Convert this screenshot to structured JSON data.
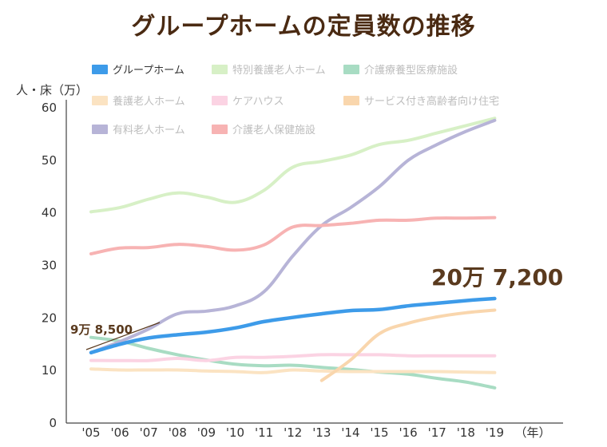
{
  "chart_data": {
    "type": "line",
    "title": "グループホームの定員数の推移",
    "ylabel": "人・床（万）",
    "xlabel": "（年）",
    "ylim": [
      0,
      60
    ],
    "yticks": [
      "0",
      "10",
      "20",
      "30",
      "40",
      "50",
      "60"
    ],
    "categories": [
      "'05",
      "'06",
      "'07",
      "'08",
      "'09",
      "'10",
      "'11",
      "'12",
      "'13",
      "'14",
      "'15",
      "'16",
      "'17",
      "'18",
      "'19"
    ],
    "grid": false,
    "legend_position": "top-left",
    "series": [
      {
        "name": "グループホーム",
        "color": "#3d9be9",
        "highlight": true,
        "values": [
          13.4,
          15.0,
          16.2,
          16.8,
          17.3,
          18.1,
          19.3,
          20.1,
          20.8,
          21.4,
          21.6,
          22.3,
          22.8,
          23.3,
          23.7
        ]
      },
      {
        "name": "特別養護老人ホーム",
        "color": "#d7f0c6",
        "values": [
          40.2,
          41.0,
          42.6,
          43.8,
          43.0,
          42.0,
          44.3,
          48.7,
          49.8,
          51.0,
          53.0,
          53.8,
          55.2,
          56.6,
          58.0
        ]
      },
      {
        "name": "介護療養型医療施設",
        "color": "#a8dcc3",
        "values": [
          16.3,
          15.6,
          14.2,
          13.0,
          12.0,
          11.2,
          10.9,
          11.0,
          10.6,
          10.2,
          9.7,
          9.3,
          8.5,
          7.8,
          6.7
        ]
      },
      {
        "name": "養護老人ホーム",
        "color": "#fbe3c2",
        "values": [
          10.3,
          10.1,
          10.1,
          10.1,
          9.9,
          9.8,
          9.6,
          10.1,
          9.9,
          9.8,
          9.8,
          9.8,
          9.8,
          9.7,
          9.6
        ]
      },
      {
        "name": "ケアハウス",
        "color": "#fbd3e3",
        "values": [
          11.9,
          11.9,
          11.9,
          12.3,
          11.9,
          12.5,
          12.5,
          12.7,
          13.0,
          13.0,
          13.0,
          12.8,
          12.8,
          12.8,
          12.8
        ]
      },
      {
        "name": "サービス付き高齢者向け住宅",
        "color": "#f9d6ad",
        "values": [
          null,
          null,
          null,
          null,
          null,
          null,
          null,
          null,
          8.1,
          12.0,
          17.0,
          19.0,
          20.2,
          21.0,
          21.5
        ]
      },
      {
        "name": "有料老人ホーム",
        "color": "#b7b4d7",
        "values": [
          13.4,
          15.5,
          17.9,
          20.8,
          21.3,
          22.3,
          25.0,
          31.8,
          37.6,
          41.0,
          45.0,
          50.0,
          53.0,
          55.5,
          57.6
        ]
      },
      {
        "name": "介護老人保健施設",
        "color": "#f7b3b3",
        "values": [
          32.2,
          33.3,
          33.4,
          34.0,
          33.6,
          32.9,
          33.9,
          37.3,
          37.6,
          38.0,
          38.6,
          38.6,
          39.0,
          39.0,
          39.1
        ]
      }
    ],
    "annotations": [
      {
        "text": "9万 8,500"
      },
      {
        "text": "20万 7,200"
      }
    ]
  }
}
